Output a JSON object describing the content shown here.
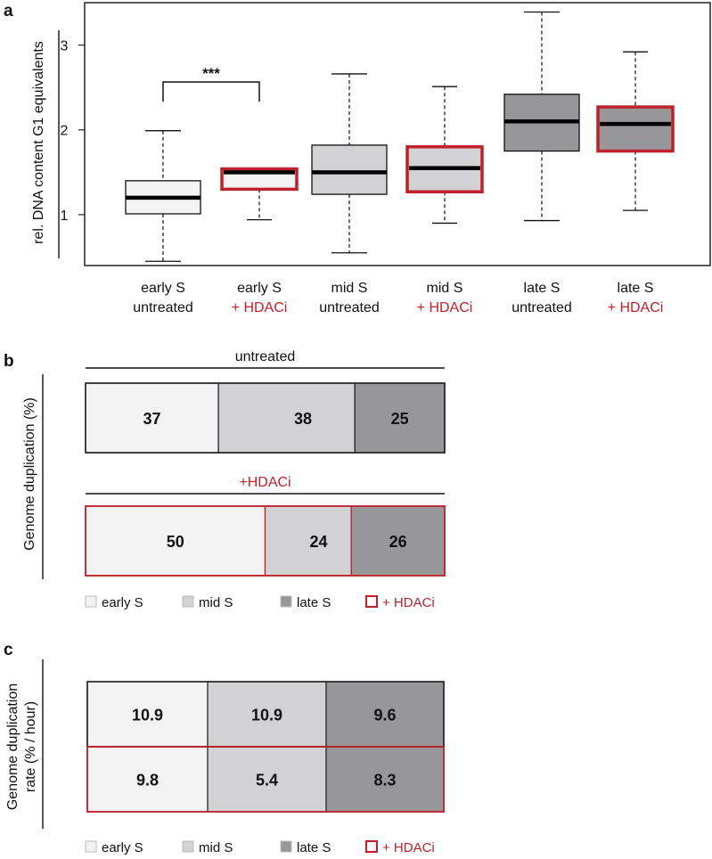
{
  "colors": {
    "early": "#f3f3f3",
    "mid": "#d2d2d4",
    "late": "#97979a",
    "hdaci": "#c0202a",
    "untreated": "#222222"
  },
  "panels": {
    "a": "a",
    "b": "b",
    "c": "c"
  },
  "chart_data": [
    {
      "type": "box",
      "panel": "a",
      "ylabel": "rel. DNA content G1 equivalents",
      "ylim": [
        0.4,
        3.5
      ],
      "yticks": [
        1,
        2,
        3
      ],
      "categories": [
        {
          "line1": "early S",
          "line2": "untreated",
          "group": "untreated",
          "phase": "early",
          "min": 0.45,
          "q1": 1.01,
          "median": 1.2,
          "q3": 1.4,
          "max": 1.99
        },
        {
          "line1": "early S",
          "line2": "+ HDACi",
          "group": "hdaci",
          "phase": "early",
          "min": 0.94,
          "q1": 1.3,
          "median": 1.5,
          "q3": 1.54,
          "max": 1.54
        },
        {
          "line1": "mid S",
          "line2": "untreated",
          "group": "untreated",
          "phase": "mid",
          "min": 0.55,
          "q1": 1.24,
          "median": 1.5,
          "q3": 1.82,
          "max": 2.66
        },
        {
          "line1": "mid S",
          "line2": "+ HDACi",
          "group": "hdaci",
          "phase": "mid",
          "min": 0.9,
          "q1": 1.27,
          "median": 1.55,
          "q3": 1.8,
          "max": 2.51
        },
        {
          "line1": "late S",
          "line2": "untreated",
          "group": "untreated",
          "phase": "late",
          "min": 0.93,
          "q1": 1.75,
          "median": 2.1,
          "q3": 2.42,
          "max": 3.39
        },
        {
          "line1": "late S",
          "line2": "+ HDACi",
          "group": "hdaci",
          "phase": "late",
          "min": 1.05,
          "q1": 1.75,
          "median": 2.07,
          "q3": 2.27,
          "max": 2.92
        }
      ],
      "annotation": {
        "text": "***",
        "from": 0,
        "to": 1
      }
    },
    {
      "type": "stacked-bar",
      "panel": "b",
      "ylabel": "Genome duplication (%)",
      "series": [
        {
          "name": "untreated",
          "values": [
            37,
            38,
            25
          ]
        },
        {
          "name": "+HDACi",
          "values": [
            50,
            24,
            26
          ]
        }
      ],
      "segments": [
        "early S",
        "mid S",
        "late S"
      ],
      "legend": [
        "early S",
        "mid S",
        "late S",
        "+ HDACi"
      ]
    },
    {
      "type": "table",
      "panel": "c",
      "ylabel_line1": "Genome duplication",
      "ylabel_line2": "rate (% / hour)",
      "rows": [
        {
          "name": "untreated",
          "values": [
            "10.9",
            "10.9",
            "9.6"
          ]
        },
        {
          "name": "+ HDACi",
          "values": [
            "9.8",
            "5.4",
            "8.3"
          ]
        }
      ],
      "columns": [
        "early S",
        "mid S",
        "late S"
      ],
      "legend": [
        "early S",
        "mid S",
        "late S",
        "+ HDACi"
      ]
    }
  ]
}
